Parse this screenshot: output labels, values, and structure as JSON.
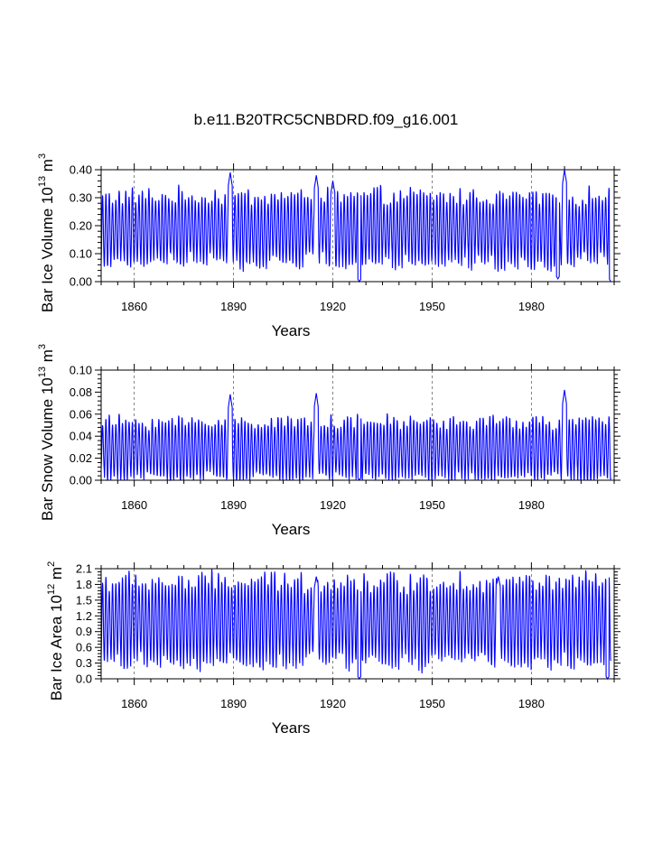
{
  "page_title": "b.e11.B20TRC5CNBDRD.f09_g16.001",
  "colors": {
    "series": "#0000ff",
    "axis": "#000000",
    "grid": "#666666"
  },
  "chart_data": [
    {
      "type": "line",
      "name": "ice-volume",
      "ylabel_main": "Bar Ice Volume 10",
      "ylabel_exp": "13",
      "ylabel_unit": " m",
      "ylabel_unit_exp": "3",
      "xlabel": "Years",
      "xlim": [
        1850,
        2005
      ],
      "ylim": [
        0,
        0.4
      ],
      "yticks": [
        0.0,
        0.1,
        0.2,
        0.3,
        0.4
      ],
      "ytick_labels": [
        "0.00",
        "0.10",
        "0.20",
        "0.30",
        "0.40"
      ],
      "xticks": [
        1860,
        1890,
        1920,
        1950,
        1980
      ],
      "xtick_labels": [
        "1860",
        "1890",
        "1920",
        "1950",
        "1980"
      ],
      "grid_x": true,
      "series_base": 0.19,
      "series_amp": 0.12,
      "notable_peaks": [
        [
          1889,
          0.39
        ],
        [
          1915,
          0.38
        ],
        [
          1920,
          0.36
        ],
        [
          1990,
          0.4
        ]
      ],
      "notable_mins": [
        [
          1928,
          0.0
        ],
        [
          1988,
          0.01
        ],
        [
          2004,
          0.0
        ]
      ],
      "period_years": 1.0
    },
    {
      "type": "line",
      "name": "snow-volume",
      "ylabel_main": "Bar Snow Volume 10",
      "ylabel_exp": "13",
      "ylabel_unit": " m",
      "ylabel_unit_exp": "3",
      "xlabel": "Years",
      "xlim": [
        1850,
        2005
      ],
      "ylim": [
        0,
        0.1
      ],
      "yticks": [
        0.0,
        0.02,
        0.04,
        0.06,
        0.08,
        0.1
      ],
      "ytick_labels": [
        "0.00",
        "0.02",
        "0.04",
        "0.06",
        "0.08",
        "0.10"
      ],
      "xticks": [
        1860,
        1890,
        1920,
        1950,
        1980
      ],
      "xtick_labels": [
        "1860",
        "1890",
        "1920",
        "1950",
        "1980"
      ],
      "grid_x": true,
      "series_base": 0.028,
      "series_amp": 0.026,
      "notable_peaks": [
        [
          1889,
          0.078
        ],
        [
          1915,
          0.079
        ],
        [
          1990,
          0.082
        ]
      ],
      "notable_mins": [
        [
          1928,
          0.0
        ]
      ],
      "period_years": 1.0
    },
    {
      "type": "line",
      "name": "ice-area",
      "ylabel_main": "Bar Ice Area 10",
      "ylabel_exp": "12",
      "ylabel_unit": " m",
      "ylabel_unit_exp": "2",
      "xlabel": "Years",
      "xlim": [
        1850,
        2005
      ],
      "ylim": [
        0,
        2.1
      ],
      "yticks": [
        0.0,
        0.3,
        0.6,
        0.9,
        1.2,
        1.5,
        1.8,
        2.1
      ],
      "ytick_labels": [
        "0.0",
        "0.3",
        "0.6",
        "0.9",
        "1.2",
        "1.5",
        "1.8",
        "2.1"
      ],
      "xticks": [
        1860,
        1890,
        1920,
        1950,
        1980
      ],
      "xtick_labels": [
        "1860",
        "1890",
        "1920",
        "1950",
        "1980"
      ],
      "grid_x": true,
      "series_base": 1.1,
      "series_amp": 0.78,
      "notable_peaks": [
        [
          1915,
          1.95
        ],
        [
          1970,
          1.95
        ]
      ],
      "notable_mins": [
        [
          1928,
          0.0
        ],
        [
          2003,
          0.0
        ]
      ],
      "period_years": 1.0
    }
  ]
}
